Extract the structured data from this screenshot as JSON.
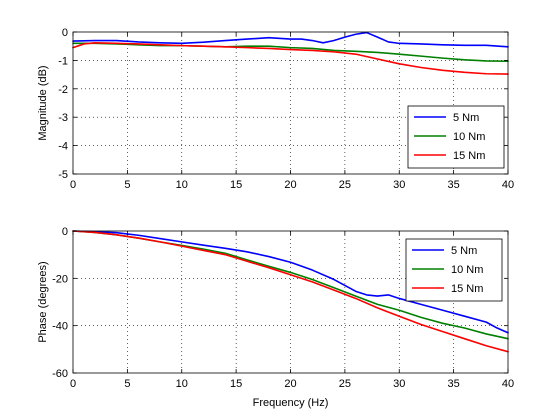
{
  "chart_data": [
    {
      "type": "line",
      "xlabel": "",
      "ylabel": "Magnitude (dB)",
      "xlim": [
        0,
        40
      ],
      "ylim": [
        -5,
        0
      ],
      "xticks": [
        0,
        5,
        10,
        15,
        20,
        25,
        30,
        35,
        40
      ],
      "yticks": [
        -5,
        -4,
        -3,
        -2,
        -1,
        0
      ],
      "grid": true,
      "legend_position": "lower-right",
      "series": [
        {
          "name": "5 Nm",
          "color": "#0000ff",
          "x": [
            0,
            2,
            4,
            6,
            8,
            10,
            12,
            14,
            16,
            18,
            20,
            21,
            22,
            23,
            24,
            25,
            26,
            27,
            28,
            29,
            30,
            32,
            34,
            36,
            38,
            40
          ],
          "y": [
            -0.32,
            -0.3,
            -0.3,
            -0.35,
            -0.38,
            -0.4,
            -0.36,
            -0.3,
            -0.25,
            -0.2,
            -0.25,
            -0.25,
            -0.3,
            -0.38,
            -0.3,
            -0.18,
            -0.08,
            -0.02,
            -0.18,
            -0.35,
            -0.4,
            -0.42,
            -0.45,
            -0.47,
            -0.47,
            -0.52
          ]
        },
        {
          "name": "10 Nm",
          "color": "#008000",
          "x": [
            0,
            2,
            4,
            6,
            8,
            10,
            12,
            14,
            16,
            18,
            20,
            22,
            24,
            26,
            28,
            30,
            32,
            34,
            36,
            38,
            40
          ],
          "y": [
            -0.4,
            -0.4,
            -0.42,
            -0.45,
            -0.48,
            -0.48,
            -0.5,
            -0.52,
            -0.5,
            -0.5,
            -0.55,
            -0.58,
            -0.65,
            -0.68,
            -0.72,
            -0.78,
            -0.85,
            -0.92,
            -0.98,
            -1.02,
            -1.03
          ]
        },
        {
          "name": "15 Nm",
          "color": "#ff0000",
          "x": [
            0,
            1,
            2,
            4,
            6,
            8,
            10,
            12,
            14,
            16,
            18,
            20,
            22,
            24,
            26,
            28,
            30,
            32,
            34,
            36,
            38,
            40
          ],
          "y": [
            -0.55,
            -0.42,
            -0.38,
            -0.4,
            -0.42,
            -0.45,
            -0.48,
            -0.5,
            -0.52,
            -0.55,
            -0.58,
            -0.62,
            -0.65,
            -0.7,
            -0.78,
            -0.95,
            -1.12,
            -1.25,
            -1.35,
            -1.42,
            -1.47,
            -1.48
          ]
        }
      ]
    },
    {
      "type": "line",
      "xlabel": "Frequency (Hz)",
      "ylabel": "Phase (degrees)",
      "xlim": [
        0,
        40
      ],
      "ylim": [
        -60,
        0
      ],
      "xticks": [
        0,
        5,
        10,
        15,
        20,
        25,
        30,
        35,
        40
      ],
      "yticks": [
        -60,
        -40,
        -20,
        0
      ],
      "grid": true,
      "legend_position": "top-right",
      "series": [
        {
          "name": "5 Nm",
          "color": "#0000ff",
          "x": [
            0,
            2,
            4,
            6,
            8,
            10,
            12,
            14,
            16,
            18,
            20,
            22,
            24,
            25,
            26,
            27,
            28,
            29,
            30,
            32,
            34,
            36,
            38,
            39,
            40
          ],
          "y": [
            0,
            -0.3,
            -0.7,
            -1.8,
            -3.2,
            -4.6,
            -6.0,
            -7.3,
            -8.8,
            -10.8,
            -13.2,
            -16.5,
            -20.5,
            -23.0,
            -25.5,
            -27.0,
            -27.5,
            -27.0,
            -28.5,
            -31.0,
            -33.5,
            -36.0,
            -38.5,
            -41.0,
            -43.0
          ]
        },
        {
          "name": "10 Nm",
          "color": "#008000",
          "x": [
            0,
            2,
            4,
            6,
            8,
            10,
            12,
            14,
            16,
            18,
            20,
            22,
            24,
            26,
            28,
            30,
            32,
            34,
            36,
            38,
            40
          ],
          "y": [
            0,
            -0.6,
            -1.6,
            -3.0,
            -4.6,
            -6.1,
            -7.7,
            -9.4,
            -12.2,
            -14.9,
            -17.5,
            -20.5,
            -24.0,
            -27.5,
            -31.0,
            -33.5,
            -36.5,
            -39.0,
            -41.0,
            -43.5,
            -45.5
          ]
        },
        {
          "name": "15 Nm",
          "color": "#ff0000",
          "x": [
            0,
            2,
            4,
            6,
            8,
            10,
            12,
            14,
            16,
            18,
            20,
            22,
            24,
            26,
            28,
            30,
            32,
            34,
            36,
            38,
            40
          ],
          "y": [
            0,
            -0.6,
            -1.6,
            -3.0,
            -4.6,
            -6.4,
            -8.2,
            -10.0,
            -12.8,
            -15.5,
            -18.5,
            -21.5,
            -25.0,
            -28.5,
            -32.5,
            -36.0,
            -39.5,
            -42.5,
            -45.5,
            -48.5,
            -51.0
          ]
        }
      ]
    }
  ]
}
